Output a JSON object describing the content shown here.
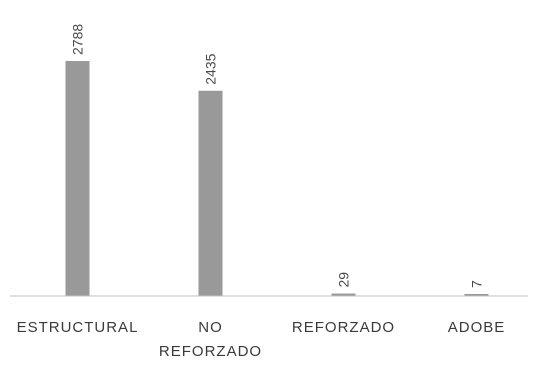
{
  "chart_data": {
    "type": "bar",
    "categories": [
      [
        "ESTRUCTURAL"
      ],
      [
        "NO",
        "REFORZADO"
      ],
      [
        "REFORZADO"
      ],
      [
        "ADOBE"
      ]
    ],
    "values": [
      2788,
      2435,
      29,
      7
    ],
    "value_labels": [
      "2788",
      "2435",
      "29",
      "7"
    ],
    "ylim": [
      0,
      2788
    ],
    "bar_color": "#999999",
    "axis_color": "#bfbfbf",
    "grid": false,
    "legend": "none"
  }
}
